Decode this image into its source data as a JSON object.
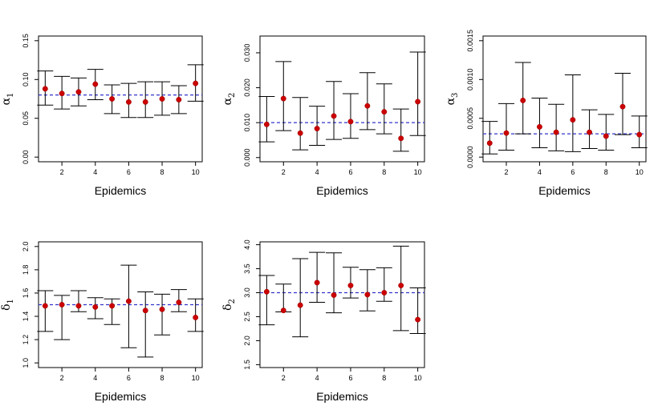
{
  "chart_data": [
    {
      "type": "errorbar",
      "panel": "alpha1",
      "ylabel_symbol": "α",
      "ylabel_subscript": "1",
      "xlabel": "Epidemics",
      "xlim": [
        0.6,
        10.4
      ],
      "ylim": [
        -0.006,
        0.156
      ],
      "x_ticks": [
        2,
        4,
        6,
        8,
        10
      ],
      "y_ticks": [
        0.0,
        0.05,
        0.1,
        0.15
      ],
      "y_tick_labels": [
        "0.00",
        "0.05",
        "0.10",
        "0.15"
      ],
      "reference_line": 0.08,
      "x": [
        1,
        2,
        3,
        4,
        5,
        6,
        7,
        8,
        9,
        10
      ],
      "estimate": [
        0.088,
        0.082,
        0.084,
        0.094,
        0.075,
        0.071,
        0.071,
        0.075,
        0.074,
        0.095
      ],
      "lower": [
        0.067,
        0.062,
        0.066,
        0.074,
        0.056,
        0.051,
        0.051,
        0.054,
        0.056,
        0.072
      ],
      "upper": [
        0.111,
        0.104,
        0.102,
        0.113,
        0.093,
        0.095,
        0.097,
        0.097,
        0.092,
        0.119
      ]
    },
    {
      "type": "errorbar",
      "panel": "alpha2",
      "ylabel_symbol": "α",
      "ylabel_subscript": "2",
      "xlabel": "Epidemics",
      "xlim": [
        0.6,
        10.4
      ],
      "ylim": [
        -0.0012,
        0.0348
      ],
      "x_ticks": [
        2,
        4,
        6,
        8,
        10
      ],
      "y_ticks": [
        0.0,
        0.01,
        0.02,
        0.03
      ],
      "y_tick_labels": [
        "0.000",
        "0.010",
        "0.020",
        "0.030"
      ],
      "reference_line": 0.01,
      "x": [
        1,
        2,
        3,
        4,
        5,
        6,
        7,
        8,
        9,
        10
      ],
      "estimate": [
        0.0095,
        0.0169,
        0.007,
        0.0083,
        0.0119,
        0.0103,
        0.0148,
        0.0131,
        0.0055,
        0.016
      ],
      "lower": [
        0.0045,
        0.0077,
        0.0022,
        0.0035,
        0.0052,
        0.0055,
        0.008,
        0.0068,
        0.0018,
        0.0063
      ],
      "upper": [
        0.0175,
        0.0275,
        0.0172,
        0.0147,
        0.0218,
        0.0183,
        0.0243,
        0.0211,
        0.0139,
        0.0302
      ]
    },
    {
      "type": "errorbar",
      "panel": "alpha3",
      "ylabel_symbol": "α",
      "ylabel_subscript": "3",
      "xlabel": "Epidemics",
      "xlim": [
        0.6,
        10.4
      ],
      "ylim": [
        -6e-05,
        0.00156
      ],
      "x_ticks": [
        2,
        4,
        6,
        8,
        10
      ],
      "y_ticks": [
        0.0,
        0.0005,
        0.001,
        0.0015
      ],
      "y_tick_labels": [
        "0.0000",
        "0.0005",
        "0.0010",
        "0.0015"
      ],
      "reference_line": 0.0003,
      "x": [
        1,
        2,
        3,
        4,
        5,
        6,
        7,
        8,
        9,
        10
      ],
      "estimate": [
        0.00018,
        0.00031,
        0.00073,
        0.00039,
        0.00032,
        0.00048,
        0.00032,
        0.00027,
        0.00065,
        0.00029
      ],
      "lower": [
        4e-05,
        9e-05,
        0.0003,
        0.00012,
        8e-05,
        7e-05,
        0.00011,
        9e-05,
        0.00029,
        0.00012
      ],
      "upper": [
        0.00046,
        0.00069,
        0.00122,
        0.00076,
        0.00068,
        0.00106,
        0.00061,
        0.00055,
        0.00108,
        0.00053
      ]
    },
    {
      "type": "errorbar",
      "panel": "delta1",
      "ylabel_symbol": "δ",
      "ylabel_subscript": "1",
      "xlabel": "Epidemics",
      "xlim": [
        0.6,
        10.4
      ],
      "ylim": [
        0.96,
        2.04
      ],
      "x_ticks": [
        2,
        4,
        6,
        8,
        10
      ],
      "y_ticks": [
        1.0,
        1.2,
        1.4,
        1.6,
        1.8,
        2.0
      ],
      "y_tick_labels": [
        "1.0",
        "1.2",
        "1.4",
        "1.6",
        "1.8",
        "2.0"
      ],
      "reference_line": 1.5,
      "x": [
        1,
        2,
        3,
        4,
        5,
        6,
        7,
        8,
        9,
        10
      ],
      "estimate": [
        1.49,
        1.5,
        1.49,
        1.48,
        1.49,
        1.53,
        1.45,
        1.46,
        1.52,
        1.39
      ],
      "lower": [
        1.27,
        1.2,
        1.44,
        1.38,
        1.33,
        1.13,
        1.05,
        1.24,
        1.44,
        1.27
      ],
      "upper": [
        1.62,
        1.58,
        1.62,
        1.56,
        1.55,
        1.84,
        1.61,
        1.59,
        1.63,
        1.55
      ]
    },
    {
      "type": "errorbar",
      "panel": "delta2",
      "ylabel_symbol": "δ",
      "ylabel_subscript": "2",
      "xlabel": "Epidemics",
      "xlim": [
        0.6,
        10.4
      ],
      "ylim": [
        1.44,
        4.06
      ],
      "x_ticks": [
        2,
        4,
        6,
        8,
        10
      ],
      "y_ticks": [
        1.5,
        2.0,
        2.5,
        3.0,
        3.5,
        4.0
      ],
      "y_tick_labels": [
        "1.5",
        "2.0",
        "2.5",
        "3.0",
        "3.5",
        "4.0"
      ],
      "reference_line": 3.0,
      "x": [
        1,
        2,
        3,
        4,
        5,
        6,
        7,
        8,
        9,
        10
      ],
      "estimate": [
        3.02,
        2.63,
        2.74,
        3.21,
        2.95,
        3.15,
        2.96,
        3.0,
        3.15,
        2.44
      ],
      "lower": [
        2.33,
        2.6,
        2.08,
        2.8,
        2.58,
        2.89,
        2.62,
        2.82,
        2.21,
        2.15
      ],
      "upper": [
        3.36,
        3.18,
        3.71,
        3.84,
        3.83,
        3.53,
        3.48,
        3.52,
        3.97,
        3.1
      ]
    }
  ]
}
